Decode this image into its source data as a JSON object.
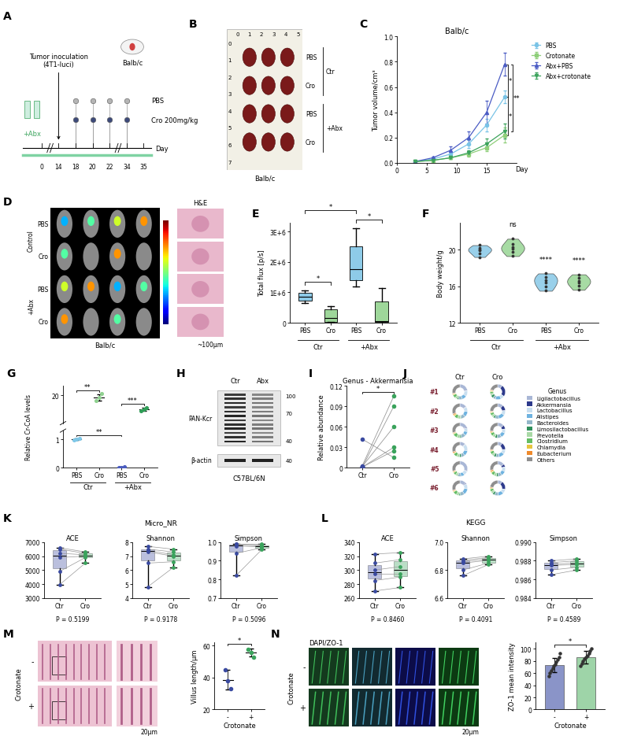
{
  "chart_data": [
    {
      "panel": "A",
      "type": "diagram",
      "strain": "Balb/c",
      "inoculation": "Tumor inoculation\n(4T1-luci)",
      "inoculation_day": 14,
      "pretreatment": "+Abx",
      "treatments": [
        {
          "name": "PBS",
          "color": "#b5b5b5"
        },
        {
          "name": "Cro 200mg/kg",
          "color": "#3d4a7a"
        }
      ],
      "days": [
        0,
        14,
        18,
        20,
        22,
        34,
        35
      ],
      "dose_days": [
        18,
        20,
        22,
        34
      ],
      "xlabel": "Day"
    },
    {
      "panel": "B",
      "type": "tumor_photo",
      "ruler_x": [
        0,
        1,
        2,
        3,
        4,
        5
      ],
      "ruler_y": [
        0,
        1,
        2,
        3,
        4,
        5,
        6,
        7
      ],
      "rows": [
        "PBS",
        "Cro",
        "PBS",
        "Cro"
      ],
      "groups": [
        "Ctr",
        "+Abx"
      ],
      "caption": "Balb/c"
    },
    {
      "panel": "C",
      "type": "line",
      "title": "Balb/c",
      "xlabel": "Day",
      "ylabel": "Tumor volume/cm³",
      "x": [
        3,
        6,
        9,
        12,
        15,
        18
      ],
      "xlim": [
        0,
        20
      ],
      "xticks": [
        0,
        5,
        10,
        15
      ],
      "ylim": [
        0,
        1.0
      ],
      "yticks": [
        {
          "value": 0,
          "label": "0.0"
        },
        0.2,
        0.4,
        0.6,
        0.8,
        1.0
      ],
      "legend": "upper left",
      "series": [
        {
          "name": "PBS",
          "color": "#79c3e6",
          "marker": "circle",
          "values": [
            0.01,
            0.03,
            0.07,
            0.15,
            0.3,
            0.52
          ],
          "errors": [
            0.005,
            0.01,
            0.02,
            0.03,
            0.05,
            0.05
          ]
        },
        {
          "name": "Crotonate",
          "color": "#8fcf7a",
          "marker": "square",
          "values": [
            0.01,
            0.02,
            0.04,
            0.07,
            0.12,
            0.22
          ],
          "errors": [
            0.005,
            0.01,
            0.01,
            0.02,
            0.03,
            0.06
          ]
        },
        {
          "name": "Abx+PBS",
          "color": "#4b5cc4",
          "marker": "triangle",
          "values": [
            0.01,
            0.04,
            0.1,
            0.2,
            0.4,
            0.78
          ],
          "errors": [
            0.005,
            0.01,
            0.03,
            0.05,
            0.09,
            0.09
          ]
        },
        {
          "name": "Abx+crotonate",
          "color": "#3ca35c",
          "marker": "triangle_down",
          "values": [
            0.01,
            0.02,
            0.04,
            0.08,
            0.15,
            0.25
          ],
          "errors": [
            0.005,
            0.01,
            0.01,
            0.02,
            0.04,
            0.06
          ]
        }
      ],
      "annotations": [
        {
          "between": [
            "Abx+PBS",
            "PBS"
          ],
          "text": "*"
        },
        {
          "between": [
            "PBS",
            "Crotonate"
          ],
          "text": "*"
        },
        {
          "between": [
            "Abx+PBS",
            "Abx+crotonate"
          ],
          "text": "**"
        }
      ]
    },
    {
      "panel": "D",
      "type": "imaging",
      "groups": [
        "Control",
        "+Abx"
      ],
      "rows": [
        "PBS",
        "Cro",
        "PBS",
        "Cro"
      ],
      "caption": "Balb/c",
      "inset_title": "H&E",
      "scale_bar": "~100μm"
    },
    {
      "panel": "E",
      "type": "box",
      "ylabel": "Total flux [p/s]",
      "categories": [
        "PBS",
        "Cro",
        "PBS",
        "Cro"
      ],
      "groups": [
        "Ctr",
        "Ctr",
        "+Abx",
        "+Abx"
      ],
      "colors": [
        "#8ecbe8",
        "#9ed79a",
        "#8ecbe8",
        "#9ed79a"
      ],
      "boxes": [
        {
          "min": 650000,
          "q1": 720000,
          "median": 850000,
          "q3": 980000,
          "max": 1050000
        },
        {
          "min": 20000,
          "q1": 40000,
          "median": 150000,
          "q3": 450000,
          "max": 550000
        },
        {
          "min": 1200000,
          "q1": 1400000,
          "median": 1750000,
          "q3": 2500000,
          "max": 3100000
        },
        {
          "min": 10000,
          "q1": 30000,
          "median": 60000,
          "q3": 700000,
          "max": 1150000
        }
      ],
      "ylim": [
        0,
        3300000
      ],
      "yticks": [
        0,
        {
          "value": 1000000,
          "label": "1E+6"
        },
        {
          "value": 2000000,
          "label": "2E+6"
        },
        {
          "value": 3000000,
          "label": "3E+6"
        }
      ],
      "annotations": [
        {
          "between": [
            [
              "Ctr",
              "PBS"
            ],
            [
              "Ctr",
              "Cro"
            ]
          ],
          "text": "*"
        },
        {
          "between": [
            [
              "+Abx",
              "PBS"
            ],
            [
              "+Abx",
              "Cro"
            ]
          ],
          "text": "*"
        },
        {
          "between": [
            [
              "Ctr",
              "PBS"
            ],
            [
              "+Abx",
              "PBS"
            ]
          ],
          "text": "*"
        }
      ]
    },
    {
      "panel": "F",
      "type": "violin",
      "ylabel": "Body weight/g",
      "categories": [
        "PBS",
        "Cro",
        "PBS",
        "Cro"
      ],
      "groups": [
        "Ctr",
        "Ctr",
        "+Abx",
        "+Abx"
      ],
      "colors": [
        "#8ecbe8",
        "#9ed79a",
        "#8ecbe8",
        "#9ed79a"
      ],
      "points": [
        [
          19.2,
          19.6,
          19.9,
          20.0,
          20.2,
          20.5
        ],
        [
          19.3,
          19.8,
          20.1,
          20.3,
          20.6,
          21.2
        ],
        [
          15.5,
          16.0,
          16.4,
          16.7,
          17.0,
          17.4
        ],
        [
          15.6,
          16.1,
          16.4,
          16.6,
          16.9,
          17.3
        ]
      ],
      "ylim": [
        12,
        23
      ],
      "yticks": [
        12,
        16,
        20
      ],
      "annotations": [
        {
          "at": [
            "Ctr",
            "Cro"
          ],
          "text": "ns"
        },
        {
          "at": [
            "+Abx",
            "PBS"
          ],
          "text": "****"
        },
        {
          "at": [
            "+Abx",
            "Cro"
          ],
          "text": "****"
        }
      ]
    },
    {
      "panel": "G",
      "type": "dot",
      "ylabel": "Relative Cr-CoA levels",
      "categories": [
        "PBS",
        "Cro",
        "PBS",
        "Cro"
      ],
      "groups": [
        "Ctr",
        "Ctr",
        "+Abx",
        "+Abx"
      ],
      "colors": [
        "#7fc8e8",
        "#8fd18f",
        "#4a5cc0",
        "#2f9e57"
      ],
      "points": [
        [
          0.97,
          1.0,
          1.03
        ],
        [
          18.8,
          19.5,
          20.3
        ],
        [
          0.01,
          0.02,
          0.03
        ],
        [
          16.6,
          17.0,
          17.4
        ]
      ],
      "values": [
        1.0,
        19.53,
        0.02,
        17.0
      ],
      "errors": [
        0.03,
        0.75,
        0.01,
        0.4
      ],
      "ylim": [
        [
          0,
          1.3
        ],
        [
          14,
          22
        ]
      ],
      "yticks": [
        [
          0,
          1
        ],
        [
          20
        ]
      ],
      "annotations": [
        {
          "between": [
            [
              "Ctr",
              "PBS"
            ],
            [
              "Ctr",
              "Cro"
            ]
          ],
          "text": "**"
        },
        {
          "between": [
            [
              "+Abx",
              "PBS"
            ],
            [
              "+Abx",
              "Cro"
            ]
          ],
          "text": "***"
        },
        {
          "between": [
            [
              "Ctr",
              "PBS"
            ],
            [
              "+Abx",
              "PBS"
            ]
          ],
          "text": "**"
        }
      ]
    },
    {
      "panel": "H",
      "type": "blot",
      "lanes": [
        "Ctr",
        "Abx"
      ],
      "bands": [
        {
          "name": "PAN-Kcr",
          "markers": [
            100,
            70,
            40
          ]
        },
        {
          "name": "β-actin",
          "markers": [
            40
          ]
        }
      ],
      "caption": "C57BL/6N"
    },
    {
      "panel": "I",
      "type": "paired",
      "title": "Genus - Akkermansia",
      "ylabel": "Relative abundance",
      "categories": [
        "Ctr",
        "Cro"
      ],
      "colors": [
        "#3a4aa0",
        "#3aa35c"
      ],
      "values": [
        [
          0.042,
          0.003,
          0.001,
          0.002,
          0.001,
          0.001
        ],
        [
          0.015,
          0.105,
          0.09,
          0.06,
          0.03,
          0.025
        ]
      ],
      "ylim": [
        0,
        0.12
      ],
      "yticks": [
        0,
        0.03,
        0.06,
        0.09,
        0.12
      ],
      "annotation": "*"
    },
    {
      "panel": "J",
      "type": "donut",
      "legend_title": "Genus",
      "legend": "upper left",
      "columns": [
        "Ctr",
        "Cro"
      ],
      "rows": [
        "#1",
        "#2",
        "#3",
        "#4",
        "#5",
        "#6"
      ],
      "labels": [
        "Ligilactobacillus",
        "Akkermansia",
        "Lactobacillus",
        "Alistipes",
        "Bacteroides",
        "Limosilactobacillus",
        "Prevotella",
        "Clostridium",
        "Chlamydia",
        "Eubacterium",
        "Others"
      ],
      "colors": [
        "#a9b7d6",
        "#2d3a8c",
        "#c9dff0",
        "#6fb3e0",
        "#93b7c9",
        "#2f8f5b",
        "#a9d9a6",
        "#64bd64",
        "#e6c53f",
        "#ef8a2c",
        "#8e8e8e"
      ],
      "values": [
        [
          [
            22,
            1,
            12,
            10,
            8,
            3,
            5,
            7,
            2,
            2,
            28
          ],
          [
            10,
            25,
            8,
            12,
            6,
            6,
            4,
            5,
            2,
            2,
            20
          ]
        ],
        [
          [
            15,
            1,
            10,
            12,
            9,
            2,
            6,
            8,
            3,
            3,
            31
          ],
          [
            12,
            12,
            10,
            14,
            8,
            4,
            5,
            6,
            2,
            2,
            25
          ]
        ],
        [
          [
            18,
            2,
            8,
            9,
            10,
            3,
            7,
            9,
            2,
            2,
            30
          ],
          [
            14,
            8,
            9,
            11,
            9,
            5,
            6,
            7,
            2,
            2,
            27
          ]
        ],
        [
          [
            12,
            1,
            15,
            11,
            8,
            4,
            6,
            8,
            2,
            3,
            30
          ],
          [
            10,
            15,
            10,
            12,
            7,
            5,
            5,
            7,
            2,
            2,
            25
          ]
        ],
        [
          [
            30,
            1,
            9,
            8,
            6,
            2,
            4,
            6,
            2,
            2,
            30
          ],
          [
            15,
            6,
            10,
            10,
            8,
            4,
            6,
            7,
            3,
            3,
            28
          ]
        ],
        [
          [
            14,
            2,
            11,
            13,
            9,
            3,
            6,
            8,
            2,
            2,
            30
          ],
          [
            10,
            18,
            9,
            12,
            8,
            5,
            5,
            6,
            2,
            2,
            23
          ]
        ]
      ]
    },
    {
      "panel": "K",
      "type": "paired_box",
      "title": "Micro_NR",
      "categories": [
        "Ctr",
        "Cro"
      ],
      "colors": [
        "#3a4aa0",
        "#3aa35c"
      ],
      "subplots": [
        {
          "title": "ACE",
          "ylim": [
            3000,
            7000
          ],
          "yticks": [
            3000,
            4000,
            5000,
            6000,
            7000
          ],
          "values": [
            [
              6600,
              6500,
              6200,
              5900,
              4900,
              3950
            ],
            [
              6300,
              6200,
              6100,
              6000,
              5900,
              5500
            ]
          ],
          "p_label": "P = 0.5199"
        },
        {
          "title": "Shannon",
          "ylim": [
            4,
            8
          ],
          "yticks": [
            4,
            5,
            6,
            7,
            8
          ],
          "values": [
            [
              7.7,
              7.5,
              7.4,
              7.3,
              6.5,
              4.8
            ],
            [
              7.5,
              7.3,
              7.1,
              7.0,
              6.6,
              6.2
            ]
          ],
          "p_label": "P = 0.9178"
        },
        {
          "title": "Simpson",
          "ylim": [
            0.7,
            1.0
          ],
          "yticks": [
            0.7,
            0.8,
            0.9,
            1.0
          ],
          "values": [
            [
              0.99,
              0.99,
              0.985,
              0.98,
              0.94,
              0.82
            ],
            [
              0.99,
              0.985,
              0.98,
              0.975,
              0.97,
              0.96
            ]
          ],
          "p_label": "P = 0.5096"
        }
      ]
    },
    {
      "panel": "L",
      "type": "paired_box",
      "title": "KEGG",
      "categories": [
        "Ctr",
        "Cro"
      ],
      "colors": [
        "#3a4aa0",
        "#3aa35c"
      ],
      "subplots": [
        {
          "title": "ACE",
          "ylim": [
            260,
            340
          ],
          "yticks": [
            260,
            280,
            300,
            320,
            340
          ],
          "values": [
            [
              323,
              310,
              300,
              295,
              285,
              270
            ],
            [
              325,
              315,
              305,
              295,
              290,
              275
            ]
          ],
          "p_label": "P = 0.8460"
        },
        {
          "title": "Shannon",
          "ylim": [
            6.6,
            7.0
          ],
          "yticks": [
            6.6,
            6.8,
            7.0
          ],
          "values": [
            [
              6.88,
              6.87,
              6.86,
              6.85,
              6.8,
              6.76
            ],
            [
              6.9,
              6.89,
              6.88,
              6.87,
              6.85,
              6.84
            ]
          ],
          "p_label": "P = 0.4091"
        },
        {
          "title": "Simpson",
          "ylim": [
            0.984,
            0.99
          ],
          "yticks": [
            0.984,
            0.986,
            0.988,
            {
              "value": 0.99,
              "label": "0.990"
            }
          ],
          "values": [
            [
              0.988,
              0.9878,
              0.9876,
              0.9875,
              0.987,
              0.9865
            ],
            [
              0.9882,
              0.988,
              0.9878,
              0.9876,
              0.9873,
              0.987
            ]
          ],
          "p_label": "P = 0.4589"
        }
      ]
    },
    {
      "panel": "M",
      "type": "histology",
      "rows_label": "Crotonate",
      "rows": [
        "-",
        "+"
      ],
      "scale_bar": "20μm"
    },
    {
      "type": "dot_bar",
      "ylabel": "Villus length/μm",
      "xlabel": "Crotonate",
      "categories": [
        "-",
        "+"
      ],
      "colors": [
        "#3a4aa0",
        "#3aa35c"
      ],
      "points": [
        [
          45,
          38,
          33
        ],
        [
          58,
          56,
          53
        ]
      ],
      "values": [
        38.7,
        55.7
      ],
      "errors": [
        6.0,
        2.5
      ],
      "ylim": [
        20,
        62
      ],
      "yticks": [
        20,
        40,
        60
      ],
      "annotation": "*"
    },
    {
      "panel": "N",
      "type": "fluorescence",
      "title": "DAPI/ZO-1",
      "rows_label": "Crotonate",
      "rows": [
        "-",
        "+"
      ],
      "scale_bar": "20μm"
    },
    {
      "type": "bar",
      "ylabel": "ZO-1 mean intensity",
      "xlabel": "Crotonate",
      "categories": [
        "-",
        "+"
      ],
      "colors": [
        "#8a94c8",
        "#9ed4a8"
      ],
      "points": [
        [
          55,
          60,
          64,
          68,
          72,
          74,
          78,
          82,
          86,
          92
        ],
        [
          72,
          76,
          80,
          84,
          86,
          88,
          92,
          96,
          100
        ]
      ],
      "values": [
        73.1,
        86.0
      ],
      "errors": [
        12,
        10
      ],
      "ylim": [
        0,
        110
      ],
      "yticks": [
        0,
        20,
        40,
        60,
        80,
        100
      ],
      "annotation": "*"
    }
  ]
}
